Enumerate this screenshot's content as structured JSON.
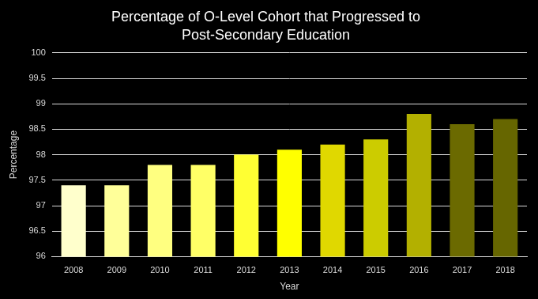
{
  "chart_data": {
    "type": "bar",
    "title": "Percentage of O-Level Cohort that Progressed to Post-Secondary Education",
    "x_label": "Year",
    "y_label": "Percentage",
    "categories": [
      "2008",
      "2009",
      "2010",
      "2011",
      "2012",
      "2013",
      "2014",
      "2015",
      "2016",
      "2017",
      "2018"
    ],
    "values": [
      97.4,
      97.4,
      97.8,
      97.8,
      98.0,
      98.1,
      98.2,
      98.3,
      98.8,
      98.6,
      98.7
    ],
    "colors": [
      "#ffffcc",
      "#ffff99",
      "#ffff80",
      "#ffff66",
      "#ffff33",
      "#ffff00",
      "#e0d800",
      "#cccc00",
      "#b3b000",
      "#6b6a00",
      "#666600"
    ],
    "ylim": [
      96,
      100
    ],
    "yticks": [
      96,
      96.5,
      97,
      97.5,
      98,
      98.5,
      99,
      99.5,
      100
    ],
    "grid": true
  }
}
